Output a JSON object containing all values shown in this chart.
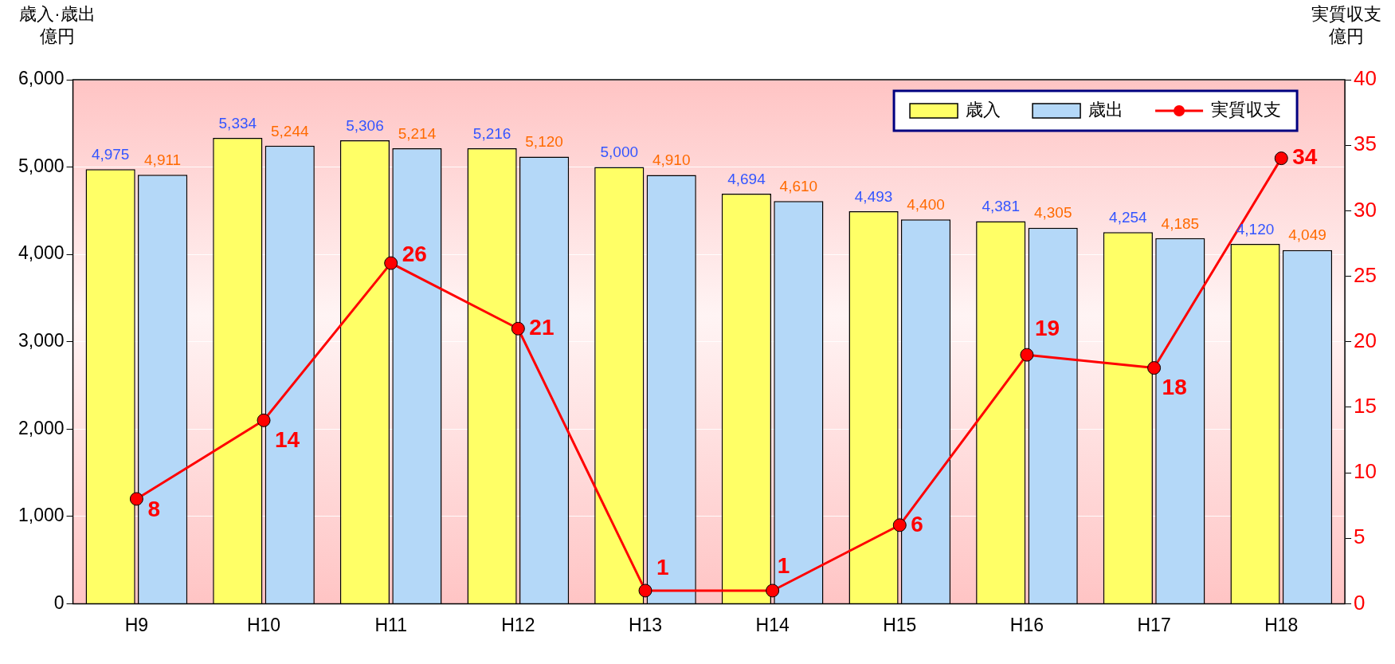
{
  "chart_data": {
    "type": "bar",
    "ylabel": "歳入·歳出億円",
    "y2label": "実質収支億円",
    "categories": [
      "H9",
      "H10",
      "H11",
      "H12",
      "H13",
      "H14",
      "H15",
      "H16",
      "H17",
      "H18"
    ],
    "series": [
      {
        "name": "歳入",
        "color": "#ffff66",
        "values": [
          4975,
          5334,
          5306,
          5216,
          5000,
          4694,
          4493,
          4381,
          4254,
          4120
        ],
        "value_labels": [
          "4,975",
          "5,334",
          "5,306",
          "5,216",
          "5,000",
          "4,694",
          "4,493",
          "4,381",
          "4,254",
          "4,120"
        ]
      },
      {
        "name": "歳出",
        "color": "#b4d8f8",
        "values": [
          4911,
          5244,
          5214,
          5120,
          4910,
          4610,
          4400,
          4305,
          4185,
          4049
        ],
        "value_labels": [
          "4,911",
          "5,244",
          "5,214",
          "5,120",
          "4,910",
          "4,610",
          "4,400",
          "4,305",
          "4,185",
          "4,049"
        ]
      },
      {
        "name": "実質収支",
        "type": "line",
        "axis": "y2",
        "color": "#ff0000",
        "values": [
          8,
          14,
          26,
          21,
          1,
          1,
          6,
          19,
          18,
          34
        ]
      }
    ],
    "ylim": [
      0,
      6000
    ],
    "yticks": [
      {
        "value": 0,
        "label": "0"
      },
      {
        "value": 1000,
        "label": "1,000"
      },
      {
        "value": 2000,
        "label": "2,000"
      },
      {
        "value": 3000,
        "label": "3,000"
      },
      {
        "value": 4000,
        "label": "4,000"
      },
      {
        "value": 5000,
        "label": "5,000"
      },
      {
        "value": 6000,
        "label": "6,000"
      }
    ],
    "y2lim": [
      0,
      40
    ],
    "y2ticks": [
      0,
      5,
      10,
      15,
      20,
      25,
      30,
      35,
      40
    ],
    "grid": "y",
    "legend": "top right",
    "marker": "circle",
    "line_style": "solid",
    "data_labels": true
  }
}
